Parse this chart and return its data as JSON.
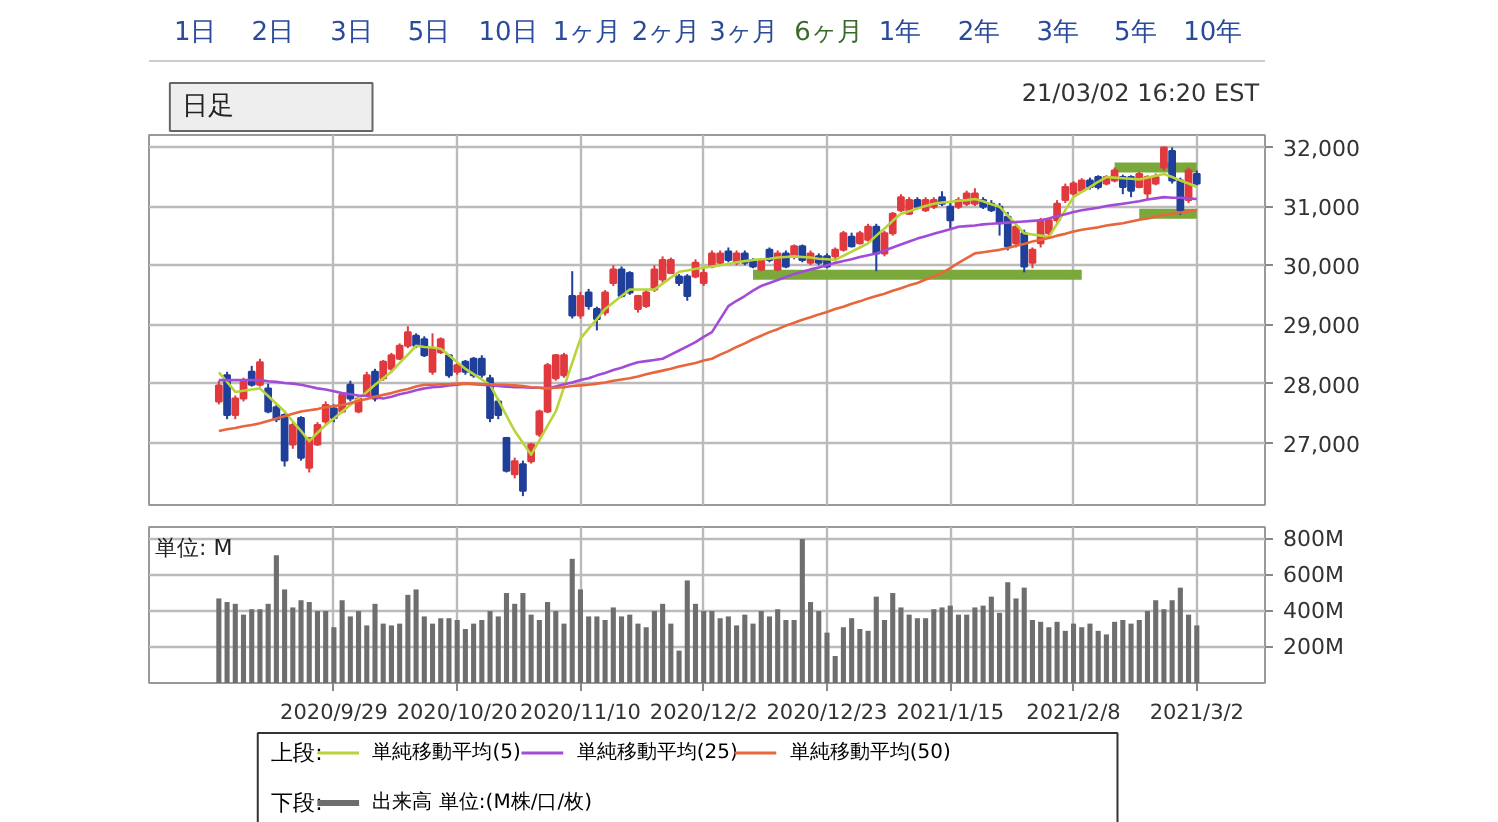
{
  "chart_data": [
    {
      "type": "candlestick",
      "annotations": [
        "1日",
        "2日",
        "3日",
        "5日",
        "10日",
        "1ヶ月",
        "2ヶ月",
        "3ヶ月",
        "6ヶ月",
        "1年",
        "2年",
        "3年",
        "5年",
        "10年",
        "日足",
        "21/03/02 16:20 EST"
      ],
      "legend_title": "上段:",
      "categories": [
        null,
        null,
        null,
        null,
        null,
        null,
        null,
        null,
        null,
        null,
        null,
        null,
        null,
        null,
        "2020/9/29",
        null,
        null,
        null,
        null,
        null,
        null,
        null,
        null,
        null,
        null,
        null,
        null,
        null,
        null,
        "2020/10/20",
        null,
        null,
        null,
        null,
        null,
        null,
        null,
        null,
        null,
        null,
        null,
        null,
        null,
        null,
        "2020/11/10",
        null,
        null,
        null,
        null,
        null,
        null,
        null,
        null,
        null,
        null,
        null,
        null,
        null,
        null,
        "2020/12/2",
        null,
        null,
        null,
        null,
        null,
        null,
        null,
        null,
        null,
        null,
        null,
        null,
        null,
        null,
        "2020/12/23",
        null,
        null,
        null,
        null,
        null,
        null,
        null,
        null,
        null,
        null,
        null,
        null,
        null,
        null,
        "2021/1/15",
        null,
        null,
        null,
        null,
        null,
        null,
        null,
        null,
        null,
        null,
        null,
        null,
        null,
        null,
        "2021/2/8",
        null,
        null,
        null,
        null,
        null,
        null,
        null,
        null,
        null,
        null,
        null,
        null,
        null,
        null,
        "2021/3/2"
      ],
      "ohlc": [
        [
          27700,
          28050,
          27650,
          27970
        ],
        [
          28140,
          28200,
          27400,
          27470
        ],
        [
          27470,
          27800,
          27400,
          27750
        ],
        [
          27750,
          28100,
          27700,
          28030
        ],
        [
          28200,
          28300,
          27950,
          27980
        ],
        [
          27980,
          28420,
          27950,
          28360
        ],
        [
          27920,
          28000,
          27500,
          27530
        ],
        [
          27600,
          27650,
          27350,
          27400
        ],
        [
          27470,
          27500,
          26600,
          26700
        ],
        [
          26970,
          27350,
          26900,
          27300
        ],
        [
          27420,
          27450,
          26700,
          26750
        ],
        [
          26580,
          27100,
          26500,
          27080
        ],
        [
          26970,
          27350,
          26950,
          27300
        ],
        [
          27360,
          27700,
          27300,
          27640
        ],
        [
          27580,
          27650,
          27350,
          27420
        ],
        [
          27530,
          27850,
          27500,
          27810
        ],
        [
          27980,
          28050,
          27700,
          27750
        ],
        [
          27530,
          27800,
          27500,
          27750
        ],
        [
          27810,
          28200,
          27780,
          28140
        ],
        [
          28200,
          28250,
          27700,
          27750
        ],
        [
          28090,
          28400,
          28050,
          28370
        ],
        [
          28250,
          28520,
          28200,
          28480
        ],
        [
          28420,
          28680,
          28400,
          28640
        ],
        [
          28640,
          28970,
          28600,
          28870
        ],
        [
          28810,
          28850,
          28600,
          28640
        ],
        [
          28750,
          28800,
          28450,
          28480
        ],
        [
          28200,
          28850,
          28150,
          28590
        ],
        [
          28530,
          28780,
          28500,
          28750
        ],
        [
          28480,
          28500,
          28100,
          28140
        ],
        [
          28200,
          28350,
          28150,
          28310
        ],
        [
          28370,
          28400,
          28150,
          28200
        ],
        [
          28420,
          28450,
          28100,
          28140
        ],
        [
          28420,
          28480,
          28100,
          28150
        ],
        [
          28090,
          28150,
          27350,
          27420
        ],
        [
          27700,
          27750,
          27400,
          27470
        ],
        [
          27080,
          27100,
          26500,
          26530
        ],
        [
          26470,
          26750,
          26400,
          26690
        ],
        [
          26640,
          26700,
          26100,
          26190
        ],
        [
          26690,
          27000,
          26650,
          26970
        ],
        [
          27140,
          27560,
          27100,
          27530
        ],
        [
          27530,
          28350,
          27500,
          28310
        ],
        [
          28090,
          28500,
          28050,
          28480
        ],
        [
          28140,
          28520,
          28100,
          28480
        ],
        [
          29480,
          29900,
          29100,
          29150
        ],
        [
          29150,
          29550,
          29100,
          29480
        ],
        [
          29540,
          29600,
          29250,
          29310
        ],
        [
          29260,
          29300,
          28900,
          29090
        ],
        [
          29200,
          29580,
          29150,
          29540
        ],
        [
          29700,
          30000,
          29650,
          29930
        ],
        [
          29930,
          29980,
          29450,
          29480
        ],
        [
          29870,
          29900,
          29500,
          29540
        ],
        [
          29260,
          29500,
          29200,
          29480
        ],
        [
          29310,
          29580,
          29280,
          29540
        ],
        [
          29590,
          30000,
          29550,
          29930
        ],
        [
          29760,
          30150,
          29700,
          30090
        ],
        [
          29870,
          30130,
          29850,
          30090
        ],
        [
          29810,
          29850,
          29650,
          29700
        ],
        [
          29810,
          29850,
          29400,
          29480
        ],
        [
          29810,
          30100,
          29780,
          30040
        ],
        [
          29700,
          29950,
          29650,
          29870
        ],
        [
          29980,
          30250,
          29950,
          30200
        ],
        [
          30040,
          30250,
          30000,
          30200
        ],
        [
          30230,
          30300,
          30050,
          30090
        ],
        [
          30040,
          30250,
          30000,
          30200
        ],
        [
          30200,
          30250,
          30000,
          30040
        ],
        [
          30090,
          30120,
          29950,
          29980
        ],
        [
          29930,
          30120,
          29900,
          30090
        ],
        [
          30260,
          30300,
          30050,
          30090
        ],
        [
          29930,
          30250,
          29900,
          30200
        ],
        [
          30200,
          30250,
          29950,
          29980
        ],
        [
          30150,
          30350,
          30100,
          30320
        ],
        [
          30320,
          30350,
          30050,
          30090
        ],
        [
          30040,
          30250,
          30000,
          30200
        ],
        [
          30150,
          30200,
          30000,
          30040
        ],
        [
          30150,
          30200,
          29950,
          29980
        ],
        [
          30150,
          30300,
          30100,
          30260
        ],
        [
          30260,
          30580,
          30230,
          30540
        ],
        [
          30480,
          30550,
          30300,
          30320
        ],
        [
          30370,
          30580,
          30350,
          30540
        ],
        [
          30430,
          30700,
          30400,
          30650
        ],
        [
          30650,
          30700,
          29900,
          30200
        ],
        [
          30200,
          30580,
          30150,
          30540
        ],
        [
          30540,
          30900,
          30500,
          30870
        ],
        [
          30930,
          31200,
          30900,
          31150
        ],
        [
          30870,
          31150,
          30850,
          31100
        ],
        [
          31100,
          31150,
          30950,
          30990
        ],
        [
          30930,
          31150,
          30900,
          31100
        ],
        [
          30990,
          31150,
          30950,
          31100
        ],
        [
          31150,
          31250,
          31000,
          31040
        ],
        [
          30990,
          31050,
          30600,
          30760
        ],
        [
          30990,
          31150,
          30950,
          31100
        ],
        [
          31040,
          31260,
          31000,
          31210
        ],
        [
          31040,
          31300,
          31000,
          31210
        ],
        [
          31100,
          31150,
          30950,
          30990
        ],
        [
          31040,
          31100,
          30900,
          30930
        ],
        [
          30990,
          31050,
          30500,
          30710
        ],
        [
          30820,
          30900,
          30250,
          30320
        ],
        [
          30370,
          30700,
          30300,
          30650
        ],
        [
          30540,
          30600,
          29880,
          29980
        ],
        [
          30040,
          30300,
          29950,
          30260
        ],
        [
          30370,
          30800,
          30300,
          30760
        ],
        [
          30540,
          30800,
          30500,
          30760
        ],
        [
          30760,
          31100,
          30700,
          31040
        ],
        [
          31100,
          31380,
          31050,
          31320
        ],
        [
          31210,
          31420,
          31180,
          31380
        ],
        [
          31260,
          31470,
          31230,
          31430
        ],
        [
          31430,
          31480,
          31280,
          31320
        ],
        [
          31490,
          31520,
          31280,
          31320
        ],
        [
          31380,
          31520,
          31350,
          31490
        ],
        [
          31430,
          31650,
          31400,
          31600
        ],
        [
          31490,
          31530,
          31200,
          31320
        ],
        [
          31490,
          31520,
          31150,
          31260
        ],
        [
          31320,
          31580,
          31300,
          31540
        ],
        [
          31210,
          31520,
          31100,
          31490
        ],
        [
          31380,
          31550,
          31350,
          31490
        ],
        [
          31650,
          32000,
          31600,
          31990
        ],
        [
          31930,
          31990,
          31380,
          31430
        ],
        [
          31430,
          31480,
          30850,
          30930
        ],
        [
          31100,
          31650,
          31050,
          31600
        ],
        [
          31540,
          31600,
          31350,
          31380
        ]
      ],
      "colors": [
        "#e0393e",
        "#1f3f99",
        "#e0393e",
        "#e0393e",
        "#1f3f99",
        "#e0393e",
        "#1f3f99",
        "#1f3f99",
        "#1f3f99",
        "#e0393e",
        "#1f3f99",
        "#e0393e",
        "#e0393e",
        "#e0393e",
        "#1f3f99",
        "#e0393e",
        "#1f3f99",
        "#e0393e",
        "#e0393e",
        "#1f3f99",
        "#e0393e",
        "#e0393e",
        "#e0393e",
        "#e0393e",
        "#1f3f99",
        "#1f3f99",
        "#e0393e",
        "#e0393e",
        "#1f3f99",
        "#e0393e",
        "#1f3f99",
        "#1f3f99",
        "#1f3f99",
        "#1f3f99",
        "#1f3f99",
        "#1f3f99",
        "#e0393e",
        "#1f3f99",
        "#e0393e",
        "#e0393e",
        "#e0393e",
        "#e0393e",
        "#e0393e",
        "#1f3f99",
        "#e0393e",
        "#1f3f99",
        "#1f3f99",
        "#e0393e",
        "#e0393e",
        "#1f3f99",
        "#1f3f99",
        "#e0393e",
        "#e0393e",
        "#e0393e",
        "#e0393e",
        "#e0393e",
        "#1f3f99",
        "#1f3f99",
        "#e0393e",
        "#e0393e",
        "#e0393e",
        "#e0393e",
        "#1f3f99",
        "#e0393e",
        "#1f3f99",
        "#1f3f99",
        "#e0393e",
        "#1f3f99",
        "#e0393e",
        "#1f3f99",
        "#e0393e",
        "#1f3f99",
        "#e0393e",
        "#1f3f99",
        "#1f3f99",
        "#e0393e",
        "#e0393e",
        "#1f3f99",
        "#e0393e",
        "#e0393e",
        "#1f3f99",
        "#e0393e",
        "#e0393e",
        "#e0393e",
        "#e0393e",
        "#1f3f99",
        "#e0393e",
        "#e0393e",
        "#1f3f99",
        "#1f3f99",
        "#e0393e",
        "#e0393e",
        "#e0393e",
        "#1f3f99",
        "#1f3f99",
        "#1f3f99",
        "#1f3f99",
        "#e0393e",
        "#1f3f99",
        "#e0393e",
        "#e0393e",
        "#e0393e",
        "#e0393e",
        "#e0393e",
        "#e0393e",
        "#e0393e",
        "#1f3f99",
        "#1f3f99",
        "#e0393e",
        "#e0393e",
        "#1f3f99",
        "#1f3f99",
        "#e0393e",
        "#e0393e",
        "#e0393e",
        "#e0393e",
        "#1f3f99",
        "#1f3f99",
        "#e0393e",
        "#1f3f99"
      ],
      "series": [
        {
          "type": "line",
          "name": "単純移動平均(5)",
          "color": "#b8d43a",
          "values": [
            28190,
            28030,
            27860,
            27880,
            27900,
            27920,
            27790,
            27660,
            27530,
            27360,
            27200,
            27030,
            27170,
            27300,
            27410,
            27530,
            27640,
            27750,
            27860,
            27980,
            28090,
            28200,
            28350,
            28490,
            28640,
            28620,
            28610,
            28590,
            28480,
            28360,
            28250,
            28160,
            28070,
            27980,
            27720,
            27460,
            27200,
            27000,
            26800,
            27040,
            27290,
            27530,
            27940,
            28350,
            28760,
            28930,
            29090,
            29260,
            29370,
            29480,
            29590,
            29590,
            29590,
            29590,
            29690,
            29790,
            29890,
            29910,
            29940,
            29960,
            29980,
            30000,
            30020,
            30050,
            30070,
            30090,
            30100,
            30110,
            30130,
            30140,
            30150,
            30140,
            30130,
            30110,
            30100,
            30090,
            30160,
            30230,
            30300,
            30370,
            30500,
            30620,
            30750,
            30870,
            30910,
            30960,
            31000,
            31040,
            31060,
            31070,
            31090,
            31100,
            31120,
            31080,
            31030,
            30990,
            30840,
            30690,
            30540,
            30520,
            30500,
            30480,
            30700,
            30930,
            31150,
            31240,
            31320,
            31410,
            31490,
            31480,
            31470,
            31460,
            31450,
            31480,
            31510,
            31540,
            31490,
            31430,
            31380,
            31320
          ]
        },
        {
          "type": "line",
          "name": "単純移動平均(25)",
          "color": "#a24bd6",
          "values": [
            28060,
            28060,
            28060,
            28060,
            28060,
            28060,
            28040,
            28030,
            28010,
            28000,
            27980,
            27950,
            27920,
            27900,
            27870,
            27840,
            27820,
            27800,
            27790,
            27770,
            27750,
            27780,
            27820,
            27850,
            27890,
            27920,
            27940,
            27950,
            27970,
            27980,
            28000,
            27990,
            27980,
            27970,
            27960,
            27950,
            27940,
            27940,
            27930,
            27930,
            27920,
            27950,
            27990,
            28020,
            28060,
            28090,
            28140,
            28180,
            28230,
            28270,
            28320,
            28360,
            28380,
            28400,
            28420,
            28490,
            28560,
            28630,
            28700,
            28790,
            28870,
            29090,
            29310,
            29400,
            29480,
            29570,
            29650,
            29700,
            29750,
            29800,
            29850,
            29890,
            29930,
            29960,
            30000,
            30040,
            30070,
            30100,
            30140,
            30170,
            30200,
            30250,
            30300,
            30350,
            30400,
            30450,
            30490,
            30530,
            30570,
            30610,
            30650,
            30660,
            30670,
            30690,
            30700,
            30710,
            30720,
            30730,
            30740,
            30750,
            30760,
            30790,
            30830,
            30860,
            30900,
            30930,
            30950,
            30970,
            31000,
            31020,
            31040,
            31060,
            31080,
            31110,
            31130,
            31150,
            31140,
            31140,
            31130,
            31120
          ]
        },
        {
          "type": "line",
          "name": "単純移動平均(50)",
          "color": "#e8663c",
          "values": [
            27200,
            27230,
            27250,
            27280,
            27300,
            27330,
            27370,
            27410,
            27450,
            27490,
            27530,
            27550,
            27570,
            27600,
            27620,
            27640,
            27670,
            27710,
            27740,
            27780,
            27810,
            27840,
            27880,
            27910,
            27950,
            27980,
            27980,
            27990,
            27990,
            28000,
            28000,
            28000,
            27990,
            27990,
            27980,
            27980,
            27970,
            27960,
            27940,
            27930,
            27920,
            27930,
            27940,
            27960,
            27970,
            27980,
            28000,
            28020,
            28050,
            28070,
            28090,
            28120,
            28160,
            28190,
            28220,
            28250,
            28290,
            28320,
            28350,
            28390,
            28420,
            28490,
            28550,
            28620,
            28680,
            28750,
            28810,
            28870,
            28920,
            28980,
            29030,
            29080,
            29120,
            29170,
            29210,
            29260,
            29300,
            29350,
            29390,
            29440,
            29480,
            29520,
            29570,
            29610,
            29660,
            29700,
            29760,
            29810,
            29870,
            29950,
            30040,
            30120,
            30200,
            30220,
            30240,
            30260,
            30290,
            30330,
            30360,
            30400,
            30430,
            30460,
            30500,
            30530,
            30570,
            30600,
            30620,
            30640,
            30670,
            30690,
            30710,
            30740,
            30770,
            30790,
            30820,
            30850,
            30870,
            30890,
            30910,
            30930
          ]
        },
        {
          "type": "line",
          "color": "#7aa83a",
          "values": [
            null,
            null,
            null,
            null,
            null,
            null,
            null,
            null,
            null,
            null,
            null,
            null,
            null,
            null,
            null,
            null,
            null,
            null,
            null,
            null,
            null,
            null,
            null,
            null,
            null,
            null,
            null,
            null,
            null,
            null,
            null,
            null,
            null,
            null,
            null,
            null,
            null,
            null,
            null,
            null,
            null,
            null,
            null,
            null,
            null,
            null,
            null,
            null,
            null,
            null,
            null,
            null,
            null,
            null,
            null,
            null,
            null,
            null,
            null,
            null,
            null,
            null,
            null,
            null,
            null,
            29840,
            29840,
            29840,
            29840,
            29840,
            29840,
            29840,
            29840,
            29840,
            29840,
            29840,
            29840,
            29840,
            29840,
            29840,
            29840,
            29840,
            29840,
            29840,
            29840,
            29840,
            29840,
            29840,
            29840,
            29840,
            29840,
            29840,
            29840,
            29840,
            29840,
            29840,
            29840,
            29840,
            29840,
            29840,
            29840,
            29840,
            29840,
            29840,
            29840,
            29840,
            null,
            null,
            null,
            null,
            null,
            null,
            null,
            null,
            null,
            null,
            null,
            null,
            null,
            null
          ]
        },
        {
          "type": "line",
          "color": "#7aa83a",
          "values": [
            null,
            null,
            null,
            null,
            null,
            null,
            null,
            null,
            null,
            null,
            null,
            null,
            null,
            null,
            null,
            null,
            null,
            null,
            null,
            null,
            null,
            null,
            null,
            null,
            null,
            null,
            null,
            null,
            null,
            null,
            null,
            null,
            null,
            null,
            null,
            null,
            null,
            null,
            null,
            null,
            null,
            null,
            null,
            null,
            null,
            null,
            null,
            null,
            null,
            null,
            null,
            null,
            null,
            null,
            null,
            null,
            null,
            null,
            null,
            null,
            null,
            null,
            null,
            null,
            null,
            null,
            null,
            null,
            null,
            null,
            null,
            null,
            null,
            null,
            null,
            null,
            null,
            null,
            null,
            null,
            null,
            null,
            null,
            null,
            null,
            null,
            null,
            null,
            null,
            null,
            null,
            null,
            null,
            null,
            null,
            null,
            null,
            null,
            null,
            null,
            null,
            null,
            null,
            null,
            null,
            null,
            null,
            null,
            null,
            31650,
            31650,
            31650,
            31650,
            31650,
            31650,
            31650,
            31650,
            31650,
            31650,
            31650
          ]
        },
        {
          "type": "line",
          "color": "#7aa83a",
          "values": [
            null,
            null,
            null,
            null,
            null,
            null,
            null,
            null,
            null,
            null,
            null,
            null,
            null,
            null,
            null,
            null,
            null,
            null,
            null,
            null,
            null,
            null,
            null,
            null,
            null,
            null,
            null,
            null,
            null,
            null,
            null,
            null,
            null,
            null,
            null,
            null,
            null,
            null,
            null,
            null,
            null,
            null,
            null,
            null,
            null,
            null,
            null,
            null,
            null,
            null,
            null,
            null,
            null,
            null,
            null,
            null,
            null,
            null,
            null,
            null,
            null,
            null,
            null,
            null,
            null,
            null,
            null,
            null,
            null,
            null,
            null,
            null,
            null,
            null,
            null,
            null,
            null,
            null,
            null,
            null,
            null,
            null,
            null,
            null,
            null,
            null,
            null,
            null,
            null,
            null,
            null,
            null,
            null,
            null,
            null,
            null,
            null,
            null,
            null,
            null,
            null,
            null,
            null,
            null,
            null,
            null,
            null,
            null,
            null,
            null,
            null,
            null,
            30870,
            30870,
            30870,
            30870,
            30870,
            30870,
            30870,
            30870
          ]
        }
      ],
      "ylim": [
        25950,
        32200
      ],
      "yticks": [
        {
          "value": 27000,
          "label": "27,000"
        },
        {
          "value": 28000,
          "label": "28,000"
        },
        {
          "value": 29000,
          "label": "29,000"
        },
        {
          "value": 30000,
          "label": "30,000"
        },
        {
          "value": 31000,
          "label": "31,000"
        },
        {
          "value": 32000,
          "label": "32,000"
        }
      ],
      "grid": true,
      "tick_labels": "y",
      "legend": "bottom"
    },
    {
      "type": "bar",
      "annotations": [
        "単位: M"
      ],
      "legend_title": "下段:",
      "categories": [
        null,
        null,
        null,
        null,
        null,
        null,
        null,
        null,
        null,
        null,
        null,
        null,
        null,
        null,
        "2020/9/29",
        null,
        null,
        null,
        null,
        null,
        null,
        null,
        null,
        null,
        null,
        null,
        null,
        null,
        null,
        "2020/10/20",
        null,
        null,
        null,
        null,
        null,
        null,
        null,
        null,
        null,
        null,
        null,
        null,
        null,
        null,
        "2020/11/10",
        null,
        null,
        null,
        null,
        null,
        null,
        null,
        null,
        null,
        null,
        null,
        null,
        null,
        null,
        "2020/12/2",
        null,
        null,
        null,
        null,
        null,
        null,
        null,
        null,
        null,
        null,
        null,
        null,
        null,
        null,
        "2020/12/23",
        null,
        null,
        null,
        null,
        null,
        null,
        null,
        null,
        null,
        null,
        null,
        null,
        null,
        null,
        "2021/1/15",
        null,
        null,
        null,
        null,
        null,
        null,
        null,
        null,
        null,
        null,
        null,
        null,
        null,
        null,
        "2021/2/8",
        null,
        null,
        null,
        null,
        null,
        null,
        null,
        null,
        null,
        null,
        null,
        null,
        null,
        null,
        "2021/3/2"
      ],
      "series": [
        {
          "name": "出来高 単位:(M株/口/枚)",
          "color": "#6e6e6e",
          "values": [
            470,
            450,
            440,
            380,
            410,
            410,
            440,
            710,
            520,
            420,
            460,
            450,
            400,
            400,
            310,
            460,
            370,
            400,
            320,
            440,
            330,
            320,
            330,
            490,
            520,
            370,
            330,
            360,
            360,
            350,
            300,
            330,
            350,
            400,
            370,
            500,
            440,
            500,
            380,
            350,
            450,
            400,
            330,
            690,
            520,
            370,
            370,
            350,
            420,
            370,
            380,
            330,
            310,
            400,
            440,
            330,
            180,
            570,
            440,
            400,
            400,
            360,
            370,
            320,
            380,
            330,
            400,
            370,
            410,
            350,
            350,
            800,
            450,
            400,
            280,
            150,
            310,
            360,
            300,
            290,
            480,
            350,
            500,
            420,
            380,
            360,
            360,
            410,
            420,
            430,
            380,
            380,
            420,
            430,
            480,
            390,
            560,
            470,
            530,
            350,
            340,
            310,
            340,
            290,
            330,
            310,
            330,
            290,
            270,
            340,
            350,
            330,
            350,
            400,
            460,
            410,
            460,
            530,
            380,
            320
          ]
        }
      ],
      "ylim": [
        0,
        867
      ],
      "yticks": [
        {
          "value": 200,
          "label": "200M"
        },
        {
          "value": 400,
          "label": "400M"
        },
        {
          "value": 600,
          "label": "600M"
        },
        {
          "value": 800,
          "label": "800M"
        }
      ],
      "grid": true,
      "legend": "bottom"
    }
  ]
}
